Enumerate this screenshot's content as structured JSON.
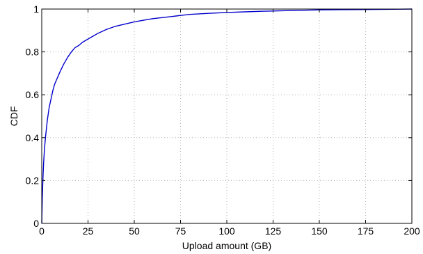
{
  "chart_data": {
    "type": "line",
    "title": "",
    "xlabel": "Upload amount (GB)",
    "ylabel": "CDF",
    "xlim": [
      0,
      200
    ],
    "ylim": [
      0,
      1
    ],
    "grid": true,
    "x_ticks": [
      0,
      25,
      50,
      75,
      100,
      125,
      150,
      175,
      200
    ],
    "y_ticks": [
      0,
      0.2,
      0.4,
      0.6,
      0.8,
      1
    ],
    "x_tick_labels": [
      "0",
      "25",
      "50",
      "75",
      "100",
      "125",
      "150",
      "175",
      "200"
    ],
    "y_tick_labels": [
      "0",
      "0.2",
      "0.4",
      "0.6",
      "0.8",
      "1"
    ],
    "series": [
      {
        "color": "#0000cc",
        "x": [
          0,
          0.3,
          0.7,
          1,
          1.5,
          2,
          3,
          4,
          5,
          6,
          7,
          8,
          10,
          12,
          14,
          16,
          18,
          20,
          22,
          25,
          28,
          30,
          35,
          40,
          45,
          50,
          55,
          60,
          65,
          70,
          75,
          80,
          90,
          100,
          110,
          120,
          125,
          130,
          140,
          150,
          160,
          175,
          190,
          200
        ],
        "y": [
          0,
          0.12,
          0.22,
          0.28,
          0.35,
          0.4,
          0.48,
          0.54,
          0.58,
          0.62,
          0.65,
          0.67,
          0.71,
          0.745,
          0.775,
          0.8,
          0.82,
          0.83,
          0.845,
          0.86,
          0.875,
          0.885,
          0.905,
          0.92,
          0.93,
          0.94,
          0.948,
          0.955,
          0.96,
          0.965,
          0.97,
          0.975,
          0.98,
          0.984,
          0.987,
          0.99,
          0.991,
          0.992,
          0.994,
          0.996,
          0.997,
          0.998,
          0.999,
          1.0
        ]
      }
    ]
  }
}
